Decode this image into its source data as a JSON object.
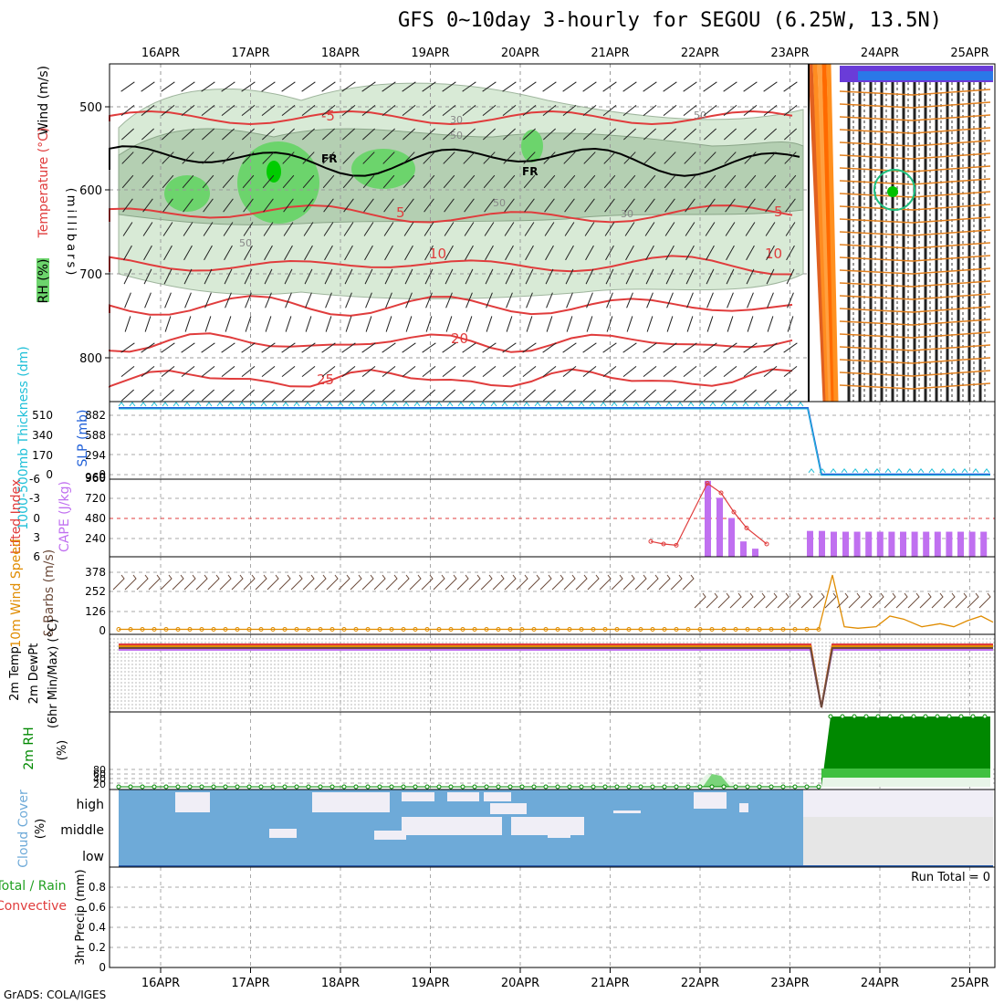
{
  "title": "GFS 0~10day 3-hourly for SEGOU (6.25W, 13.5N)",
  "credit": "GrADS: COLA/IGES",
  "dates": [
    "16APR",
    "17APR",
    "18APR",
    "19APR",
    "20APR",
    "21APR",
    "22APR",
    "23APR",
    "24APR",
    "25APR"
  ],
  "colors": {
    "temperature": "#e03c3c",
    "rh_light": "#d8ead6",
    "rh_mid": "#b4cfb2",
    "rh_green": "#6cd46c",
    "freezing": "#000000",
    "slp": "#2060d8",
    "thickness": "#20c0d8",
    "cape": "#c070f0",
    "lifted": "#e03c3c",
    "wind": "#e08c00",
    "barb": "#6b4a3a",
    "rh2m": "#008800",
    "cloud": "#6eaad8",
    "cloud_gap": "#f0eef6",
    "bad": "#e08020"
  },
  "panels": {
    "upper": {
      "ylabel": "(millibars)",
      "left_labels": [
        "Wind (m/s)",
        "Temperature (°C)",
        "RH (%)"
      ],
      "yticks": [
        "500",
        "600",
        "700",
        "800"
      ],
      "temp_labels": [
        "-5",
        "5",
        "10",
        "20",
        "25",
        "5",
        "10"
      ],
      "rh_labels": [
        "30",
        "50",
        "50",
        "50",
        "50",
        "30",
        "30"
      ],
      "freezing_label": "FR"
    },
    "slp": {
      "ylabel_left": "1000-500mb Thickness (dm)",
      "ylabel_right": "SLP (mb)",
      "yticks_left": [
        "510",
        "340",
        "170",
        "0"
      ],
      "yticks_right": [
        "882",
        "588",
        "294",
        "0",
        "960"
      ]
    },
    "cape": {
      "ylabel_left": "Lifted Index",
      "ylabel_right": "CAPE (J/kg)",
      "yticks_left": [
        "-6",
        "-3",
        "0",
        "3",
        "6"
      ],
      "yticks_right": [
        "960",
        "720",
        "480",
        "240"
      ]
    },
    "wind10m": {
      "ylabel_left": "10m Wind Speed",
      "ylabel_right": "& Barbs (m/s)",
      "yticks": [
        "378",
        "252",
        "126",
        "0"
      ]
    },
    "temp2m": {
      "ylabel_left": "2m Temp",
      "ylabel_mid": "2m DewPt",
      "ylabel_right": "(6hr Min/Max) (°C)"
    },
    "rh2m": {
      "ylabel_left": "2m RH",
      "ylabel_right": "(%)",
      "yticks": [
        "80",
        "60",
        "40",
        "20"
      ]
    },
    "cloud": {
      "ylabel_left": "Cloud Cover",
      "ylabel_right": "(%)",
      "levels": [
        "high",
        "middle",
        "low"
      ]
    },
    "precip": {
      "ylabel_left": "Total / Rain",
      "ylabel_left2": "Convective",
      "ylabel_right": "3hr Precip (mm)",
      "yticks": [
        "0.8",
        "0.6",
        "0.4",
        "0.2",
        "0"
      ],
      "run_total": "Run Total = 0"
    }
  },
  "chart_data": [
    {
      "type": "line",
      "title": "1000-500mb Thickness / SLP",
      "x": [
        "16APR",
        "17APR",
        "18APR",
        "19APR",
        "20APR",
        "21APR",
        "22APR",
        "23APR",
        "23APR 12z",
        "24APR",
        "25APR"
      ],
      "series": [
        {
          "name": "SLP (mb)",
          "values": [
            960,
            960,
            960,
            960,
            960,
            960,
            960,
            960,
            2,
            2,
            2
          ]
        },
        {
          "name": "1000-500mb Thickness (dm)",
          "values": [
            570,
            570,
            570,
            570,
            570,
            570,
            570,
            570,
            0,
            0,
            0
          ]
        }
      ]
    },
    {
      "type": "bar",
      "title": "CAPE (J/kg)",
      "x": [
        "22APR 03z",
        "22APR 06z",
        "22APR 09z",
        "22APR 12z",
        "22APR 15z",
        "23APR 09z",
        "23APR 12z",
        "23APR 15z",
        "24APR",
        "25APR"
      ],
      "values": [
        940,
        730,
        480,
        190,
        100,
        320,
        320,
        310,
        310,
        310
      ],
      "ylim": [
        0,
        960
      ]
    },
    {
      "type": "line",
      "title": "Lifted Index",
      "x": [
        "21APR 12z",
        "21APR 18z",
        "22APR",
        "22APR 03z",
        "22APR 09z",
        "22APR 12z",
        "22APR 18z",
        "23APR"
      ],
      "values": [
        3.6,
        4.0,
        4.2,
        -5.5,
        -4.0,
        -1.0,
        1.5,
        4.0
      ],
      "ylim": [
        6,
        -6
      ]
    },
    {
      "type": "line",
      "title": "10m Wind Speed (m/s)",
      "x": [
        "16APR",
        "18APR",
        "20APR",
        "22APR",
        "23APR 12z",
        "23APR 18z",
        "24APR",
        "24APR 12z",
        "25APR"
      ],
      "values": [
        3,
        3,
        3,
        3,
        4,
        360,
        20,
        90,
        50
      ],
      "ylim": [
        0,
        378
      ]
    },
    {
      "type": "area",
      "title": "2m RH (%)",
      "x": [
        "16APR",
        "18APR",
        "20APR",
        "22APR",
        "22APR 06z",
        "23APR",
        "23APR 12z",
        "23APR 18z",
        "24APR",
        "25APR"
      ],
      "values": [
        5,
        5,
        5,
        5,
        25,
        5,
        5,
        100,
        100,
        100
      ],
      "ylim": [
        0,
        100
      ]
    },
    {
      "type": "line",
      "title": "3hr Precip (mm)",
      "x": [
        "16APR",
        "25APR"
      ],
      "values": [
        0,
        0
      ],
      "ylim": [
        0,
        1
      ]
    }
  ]
}
